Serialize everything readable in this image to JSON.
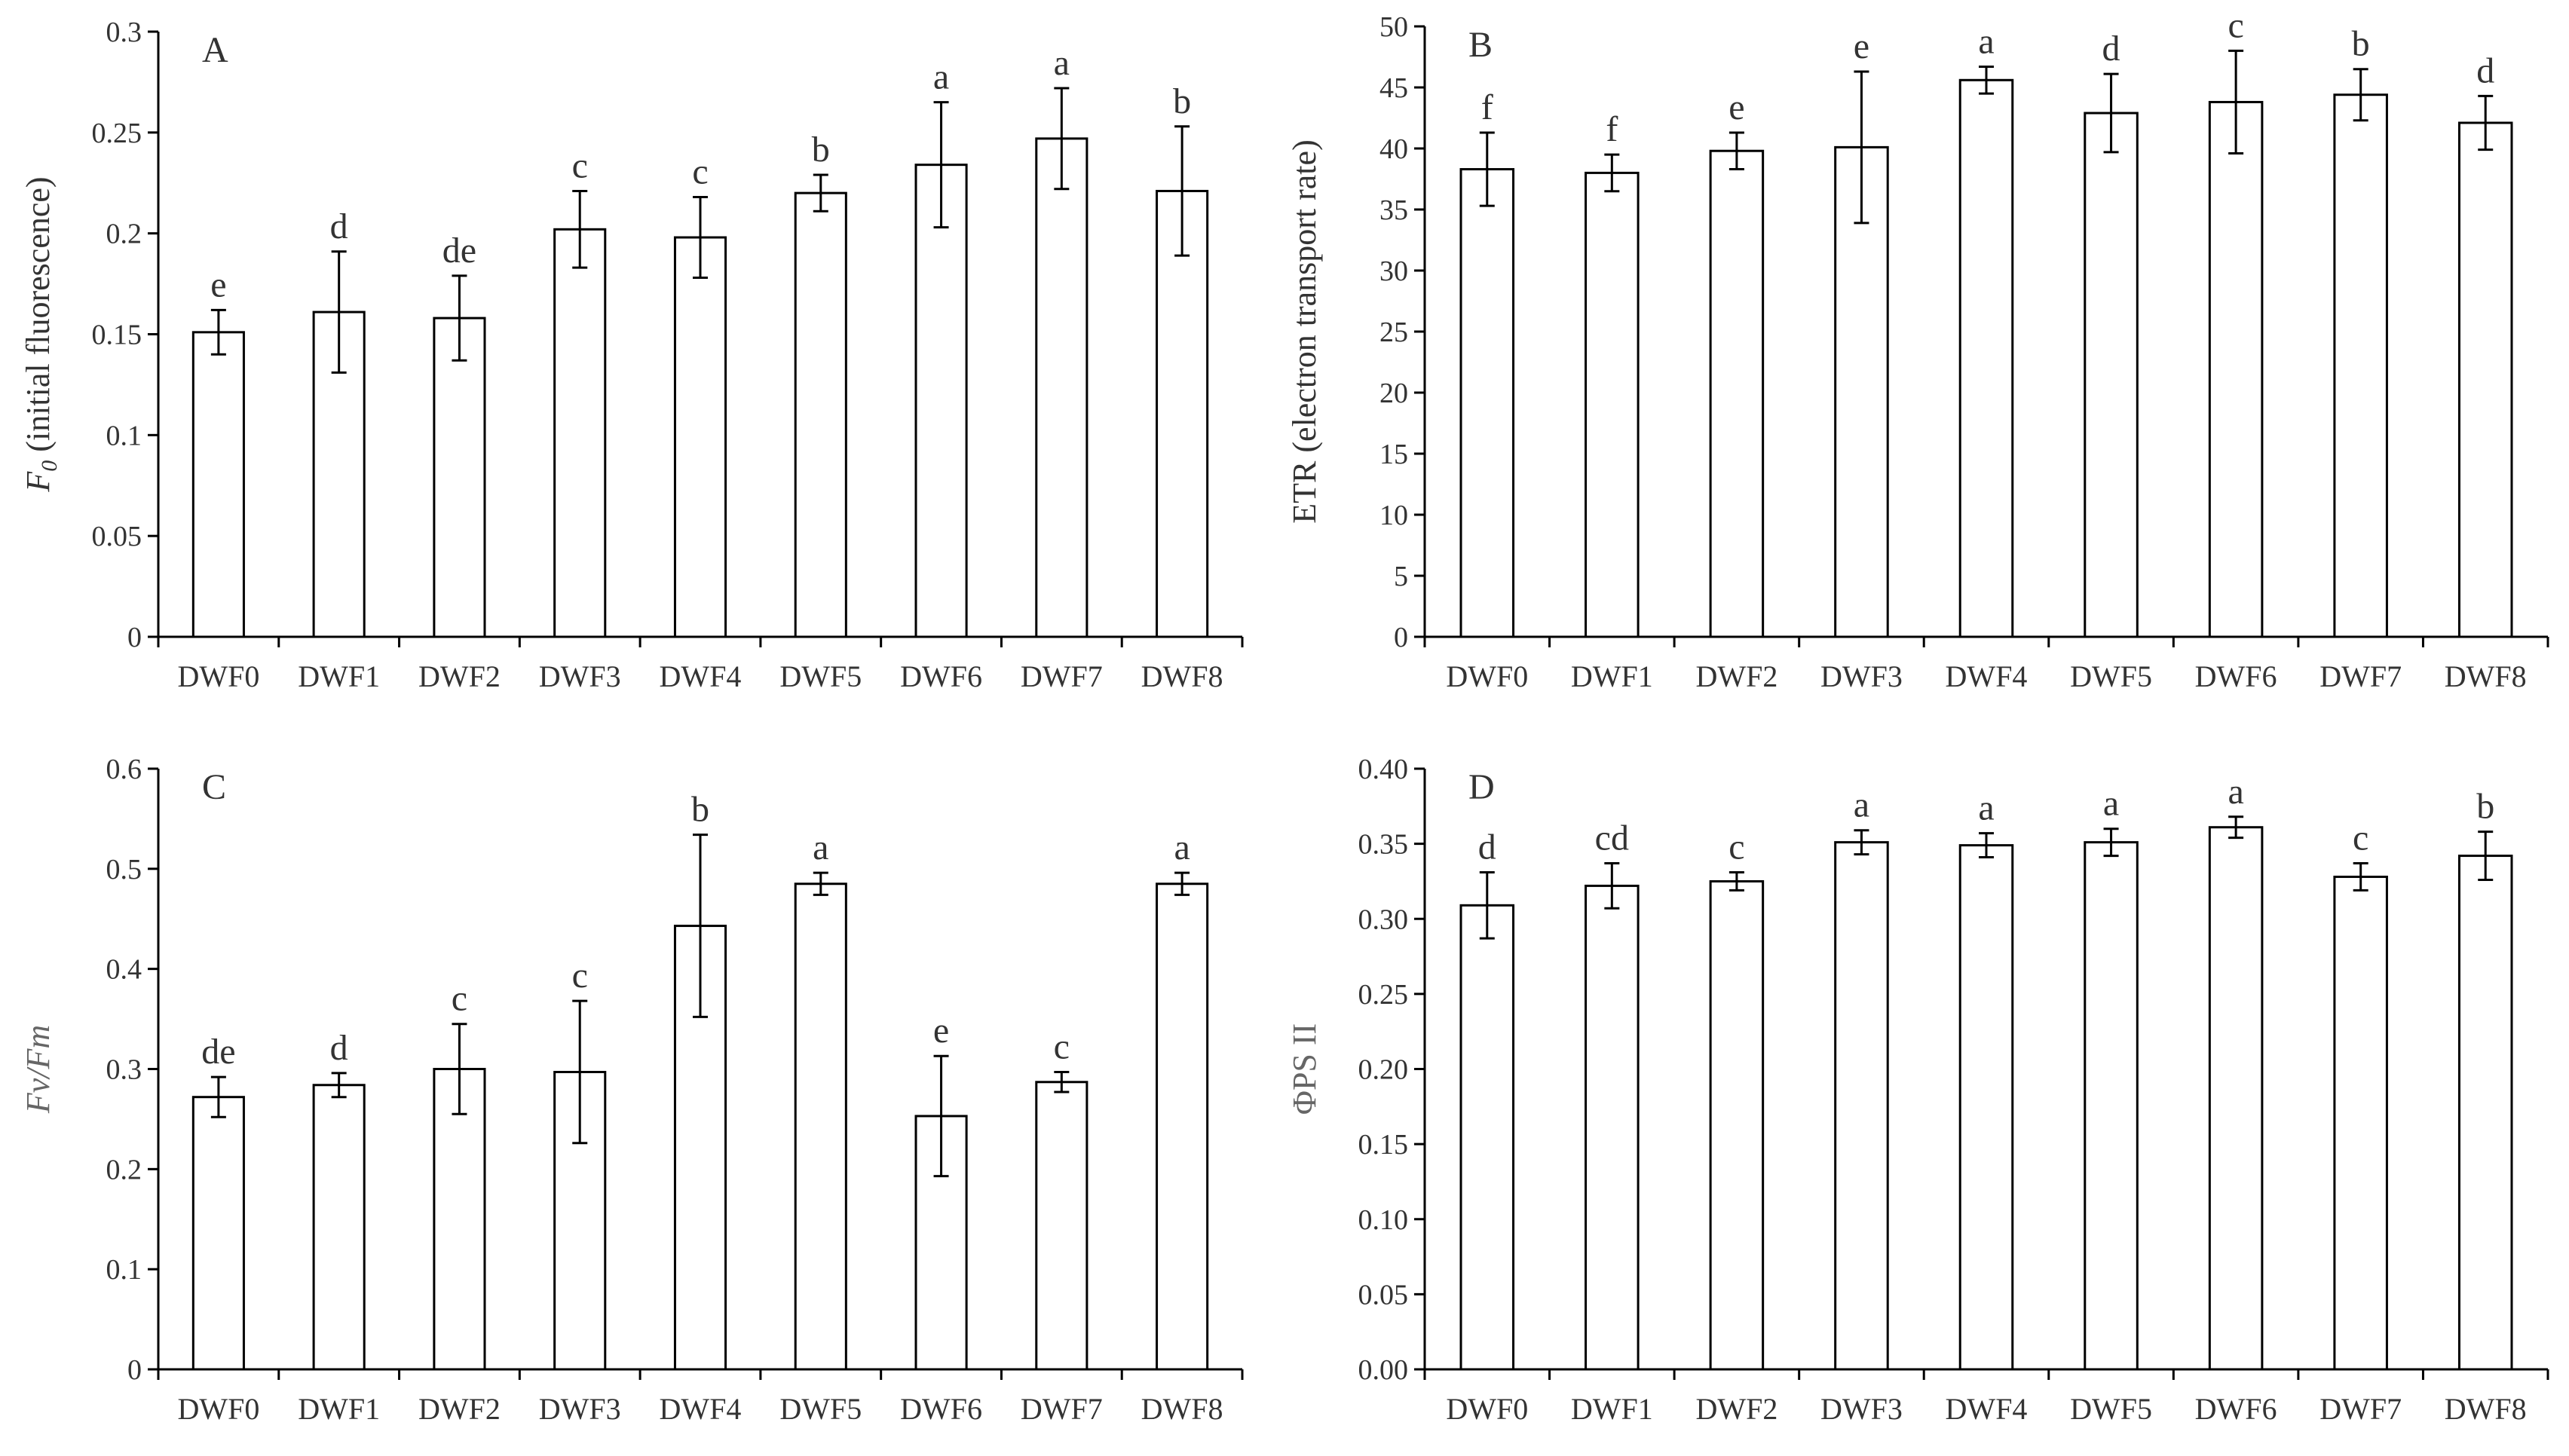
{
  "chart_data": [
    {
      "panel_label": "A",
      "type": "bar",
      "categories": [
        "DWF0",
        "DWF1",
        "DWF2",
        "DWF3",
        "DWF4",
        "DWF5",
        "DWF6",
        "DWF7",
        "DWF8"
      ],
      "values": [
        0.151,
        0.161,
        0.158,
        0.202,
        0.198,
        0.22,
        0.234,
        0.247,
        0.221
      ],
      "errors": [
        0.011,
        0.03,
        0.021,
        0.019,
        0.02,
        0.009,
        0.031,
        0.025,
        0.032
      ],
      "significance": [
        "e",
        "d",
        "de",
        "c",
        "c",
        "b",
        "a",
        "a",
        "b"
      ],
      "ylabel_italic": "F0",
      "ylabel_main": "F",
      "ylabel_sub": "0",
      "ylabel_rest": "(initial fluorescence)",
      "xlabel": "",
      "ylim": [
        0,
        0.3
      ],
      "yticks": [
        "0",
        "0.05",
        "0.1",
        "0.15",
        "0.2",
        "0.25",
        "0.3"
      ],
      "ytick_values": [
        0,
        0.05,
        0.1,
        0.15,
        0.2,
        0.25,
        0.3
      ]
    },
    {
      "panel_label": "B",
      "type": "bar",
      "categories": [
        "DWF0",
        "DWF1",
        "DWF2",
        "DWF3",
        "DWF4",
        "DWF5",
        "DWF6",
        "DWF7",
        "DWF8"
      ],
      "values": [
        38.3,
        38.0,
        39.8,
        40.1,
        45.6,
        42.9,
        43.8,
        44.4,
        42.1
      ],
      "errors": [
        3.0,
        1.5,
        1.5,
        6.2,
        1.1,
        3.2,
        4.2,
        2.1,
        2.2
      ],
      "significance": [
        "f",
        "f",
        "e",
        "e",
        "a",
        "d",
        "c",
        "b",
        "d"
      ],
      "ylabel": "ETR (electron transport rate)",
      "xlabel": "",
      "ylim": [
        0,
        50
      ],
      "yticks": [
        "0",
        "5",
        "10",
        "15",
        "20",
        "25",
        "30",
        "35",
        "40",
        "45",
        "50"
      ],
      "ytick_values": [
        0,
        5,
        10,
        15,
        20,
        25,
        30,
        35,
        40,
        45,
        50
      ]
    },
    {
      "panel_label": "C",
      "type": "bar",
      "categories": [
        "DWF0",
        "DWF1",
        "DWF2",
        "DWF3",
        "DWF4",
        "DWF5",
        "DWF6",
        "DWF7",
        "DWF8"
      ],
      "values": [
        0.272,
        0.284,
        0.3,
        0.297,
        0.443,
        0.485,
        0.253,
        0.287,
        0.485
      ],
      "errors": [
        0.02,
        0.012,
        0.045,
        0.071,
        0.091,
        0.011,
        0.06,
        0.01,
        0.011
      ],
      "significance": [
        "de",
        "d",
        "c",
        "c",
        "b",
        "a",
        "e",
        "c",
        "a"
      ],
      "ylabel": "Fv/Fm",
      "xlabel": "",
      "ylim": [
        0,
        0.6
      ],
      "yticks": [
        "0",
        "0.1",
        "0.2",
        "0.3",
        "0.4",
        "0.5",
        "0.6"
      ],
      "ytick_values": [
        0,
        0.1,
        0.2,
        0.3,
        0.4,
        0.5,
        0.6
      ]
    },
    {
      "panel_label": "D",
      "type": "bar",
      "categories": [
        "DWF0",
        "DWF1",
        "DWF2",
        "DWF3",
        "DWF4",
        "DWF5",
        "DWF6",
        "DWF7",
        "DWF8"
      ],
      "values": [
        0.309,
        0.322,
        0.325,
        0.351,
        0.349,
        0.351,
        0.361,
        0.328,
        0.342
      ],
      "errors": [
        0.022,
        0.015,
        0.006,
        0.008,
        0.008,
        0.009,
        0.007,
        0.009,
        0.016
      ],
      "significance": [
        "d",
        "cd",
        "c",
        "a",
        "a",
        "a",
        "a",
        "c",
        "b"
      ],
      "ylabel": "ΦPS II",
      "xlabel": "",
      "ylim": [
        0,
        0.4
      ],
      "yticks": [
        "0.00",
        "0.05",
        "0.10",
        "0.15",
        "0.20",
        "0.25",
        "0.30",
        "0.35",
        "0.40"
      ],
      "ytick_values": [
        0,
        0.05,
        0.1,
        0.15,
        0.2,
        0.25,
        0.3,
        0.35,
        0.4
      ]
    }
  ]
}
